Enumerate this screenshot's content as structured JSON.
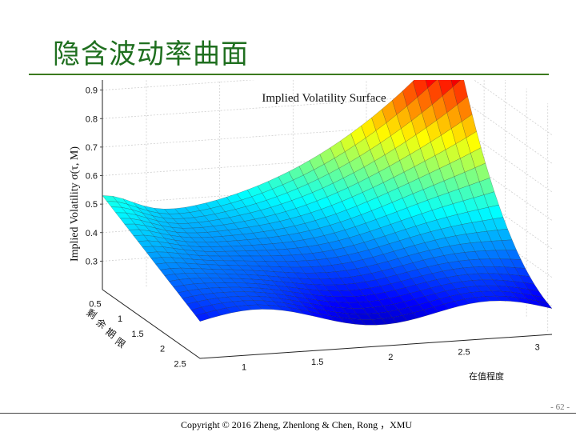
{
  "slide": {
    "title": "隐含波动率曲面",
    "page_number": "- 62 -",
    "copyright": "Copyright © 2016 Zheng, Zhenlong & Chen, Rong ，XMU"
  },
  "chart_data": {
    "type": "surface",
    "title": "Implied Volatility Surface",
    "zlabel": "Implied Volatility σ(τ, M)",
    "xlabel": "在值程度",
    "ylabel": "剩余期限",
    "x_ticks": [
      "1",
      "1.5",
      "2",
      "2.5",
      "3"
    ],
    "y_ticks": [
      "0.5",
      "1",
      "1.5",
      "2",
      "2.5"
    ],
    "z_ticks": [
      "0.3",
      "0.4",
      "0.5",
      "0.6",
      "0.7",
      "0.8",
      "0.9"
    ],
    "xlim": [
      0.7,
      3.1
    ],
    "ylim": [
      0.3,
      2.6
    ],
    "zlim": [
      0.2,
      1.0
    ],
    "colormap": "jet",
    "grid": true,
    "approx_points": [
      {
        "M": 0.7,
        "tau": 0.3,
        "sigma": 0.52
      },
      {
        "M": 0.7,
        "tau": 2.6,
        "sigma": 0.24
      },
      {
        "M": 3.1,
        "tau": 0.3,
        "sigma": 0.98
      },
      {
        "M": 3.1,
        "tau": 2.6,
        "sigma": 0.27
      },
      {
        "M": 1.5,
        "tau": 0.3,
        "sigma": 0.44
      },
      {
        "M": 2.0,
        "tau": 0.3,
        "sigma": 0.62
      },
      {
        "M": 2.5,
        "tau": 0.3,
        "sigma": 0.85
      }
    ]
  }
}
